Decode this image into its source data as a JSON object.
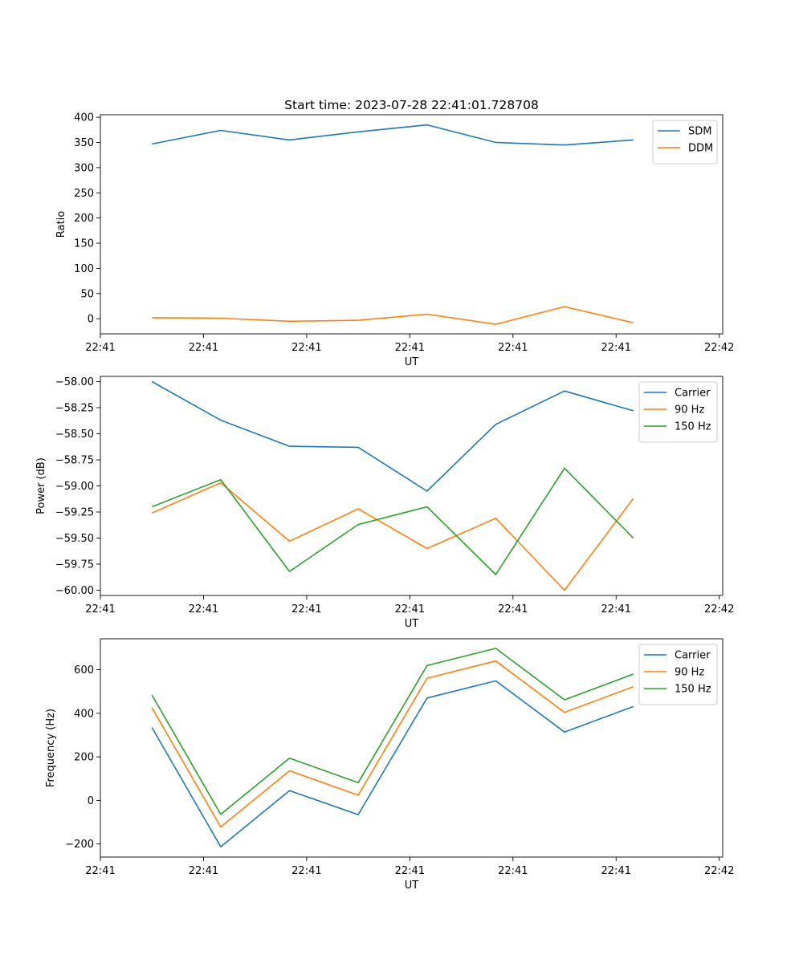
{
  "chart_data": [
    {
      "type": "line",
      "title": "Start time: 2023-07-28 22:41:01.728708",
      "xlabel": "UT",
      "ylabel": "Ratio",
      "ylim": [
        -30,
        405
      ],
      "xlim": [
        -0.75,
        8.3
      ],
      "x": [
        0,
        1,
        2,
        3,
        4,
        5,
        6,
        7
      ],
      "xticks": [
        -0.75,
        0.75,
        2.25,
        3.75,
        5.25,
        6.75,
        8.25
      ],
      "xtick_labels": [
        "22:41",
        "22:41",
        "22:41",
        "22:41",
        "22:41",
        "22:41",
        "22:42"
      ],
      "yticks": [
        0,
        50,
        100,
        150,
        200,
        250,
        300,
        350,
        400
      ],
      "ytick_labels": [
        "0",
        "50",
        "100",
        "150",
        "200",
        "250",
        "300",
        "350",
        "400"
      ],
      "legend_position": "top-right",
      "series": [
        {
          "name": "SDM",
          "color": "#1f77b4",
          "values": [
            347,
            374,
            355,
            371,
            385,
            350,
            345,
            355
          ]
        },
        {
          "name": "DDM",
          "color": "#ff7f0e",
          "values": [
            2,
            1,
            -5,
            -3,
            9,
            -11,
            24,
            -8
          ]
        }
      ]
    },
    {
      "type": "line",
      "title": "",
      "xlabel": "UT",
      "ylabel": "Power (dB)",
      "ylim": [
        -60.05,
        -57.95
      ],
      "xlim": [
        -0.75,
        8.3
      ],
      "x": [
        0,
        1,
        2,
        3,
        4,
        5,
        6,
        7
      ],
      "xticks": [
        -0.75,
        0.75,
        2.25,
        3.75,
        5.25,
        6.75,
        8.25
      ],
      "xtick_labels": [
        "22:41",
        "22:41",
        "22:41",
        "22:41",
        "22:41",
        "22:41",
        "22:42"
      ],
      "yticks": [
        -58.0,
        -58.25,
        -58.5,
        -58.75,
        -59.0,
        -59.25,
        -59.5,
        -59.75,
        -60.0
      ],
      "ytick_labels": [
        "−58.00",
        "−58.25",
        "−58.50",
        "−58.75",
        "−59.00",
        "−59.25",
        "−59.50",
        "−59.75",
        "−60.00"
      ],
      "legend_position": "top-right",
      "series": [
        {
          "name": "Carrier",
          "color": "#1f77b4",
          "values": [
            -58.0,
            -58.37,
            -58.62,
            -58.63,
            -59.05,
            -58.41,
            -58.09,
            -58.28
          ]
        },
        {
          "name": "90 Hz",
          "color": "#ff7f0e",
          "values": [
            -59.26,
            -58.97,
            -59.53,
            -59.22,
            -59.6,
            -59.31,
            -60.0,
            -59.12
          ]
        },
        {
          "name": "150 Hz",
          "color": "#2ca02c",
          "values": [
            -59.2,
            -58.94,
            -59.82,
            -59.37,
            -59.2,
            -59.85,
            -58.83,
            -59.5
          ]
        }
      ]
    },
    {
      "type": "line",
      "title": "",
      "xlabel": "UT",
      "ylabel": "Frequency (Hz)",
      "ylim": [
        -260,
        742
      ],
      "xlim": [
        -0.75,
        8.3
      ],
      "x": [
        0,
        1,
        2,
        3,
        4,
        5,
        6,
        7
      ],
      "xticks": [
        -0.75,
        0.75,
        2.25,
        3.75,
        5.25,
        6.75,
        8.25
      ],
      "xtick_labels": [
        "22:41",
        "22:41",
        "22:41",
        "22:41",
        "22:41",
        "22:41",
        "22:42"
      ],
      "yticks": [
        -200,
        0,
        200,
        400,
        600
      ],
      "ytick_labels": [
        "−200",
        "0",
        "200",
        "400",
        "600"
      ],
      "legend_position": "top-right",
      "series": [
        {
          "name": "Carrier",
          "color": "#1f77b4",
          "values": [
            335,
            -213,
            45,
            -65,
            470,
            549,
            314,
            431
          ]
        },
        {
          "name": "90 Hz",
          "color": "#ff7f0e",
          "values": [
            426,
            -122,
            136,
            24,
            561,
            640,
            404,
            522
          ]
        },
        {
          "name": "150 Hz",
          "color": "#2ca02c",
          "values": [
            484,
            -64,
            194,
            82,
            619,
            698,
            462,
            580
          ]
        }
      ]
    }
  ]
}
